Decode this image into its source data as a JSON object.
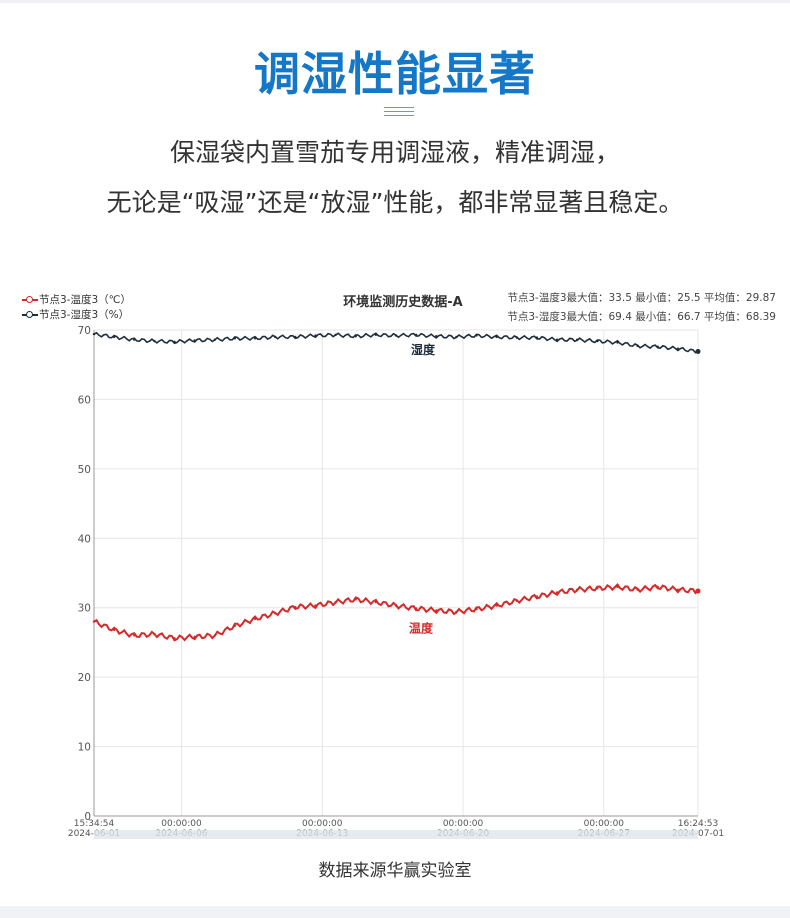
{
  "header": {
    "title": "调湿性能显著",
    "desc_line1": "保湿袋内置雪茄专用调湿液，精准调湿，",
    "desc_line2": "无论是“吸湿”还是“放湿”性能，都非常显著且稳定。"
  },
  "chart_data": {
    "type": "line",
    "title": "环境监测历史数据-A",
    "ylim": [
      0,
      70
    ],
    "yticks": [
      0,
      10,
      20,
      30,
      40,
      50,
      60,
      70
    ],
    "grid": true,
    "legend_position": "top-left",
    "x_ticks": [
      {
        "time": "15:34:54",
        "date": "2024-06-01"
      },
      {
        "time": "00:00:00",
        "date": "2024-06-06"
      },
      {
        "time": "00:00:00",
        "date": "2024-06-13"
      },
      {
        "time": "00:00:00",
        "date": "2024-06-20"
      },
      {
        "time": "00:00:00",
        "date": "2024-06-27"
      },
      {
        "time": "16:24:53",
        "date": "2024-07-01"
      }
    ],
    "x": [
      "06-01",
      "06-02",
      "06-03",
      "06-04",
      "06-05",
      "06-06",
      "06-07",
      "06-08",
      "06-09",
      "06-10",
      "06-11",
      "06-12",
      "06-13",
      "06-14",
      "06-15",
      "06-16",
      "06-17",
      "06-18",
      "06-19",
      "06-20",
      "06-21",
      "06-22",
      "06-23",
      "06-24",
      "06-25",
      "06-26",
      "06-27",
      "06-28",
      "06-29",
      "06-30",
      "07-01"
    ],
    "series": [
      {
        "name": "节点3-温度3（℃）",
        "color": "#d42a2a",
        "label": "温度",
        "values": [
          28.0,
          26.8,
          26.0,
          26.2,
          25.6,
          25.8,
          26.0,
          27.4,
          28.4,
          29.2,
          30.1,
          30.3,
          30.8,
          31.2,
          30.8,
          30.3,
          29.9,
          29.6,
          29.4,
          29.8,
          30.3,
          31.0,
          31.6,
          32.2,
          32.6,
          32.8,
          33.0,
          32.6,
          33.0,
          32.6,
          32.4
        ]
      },
      {
        "name": "节点3-湿度3（%）",
        "color": "#1f2e3d",
        "label": "湿度",
        "values": [
          69.4,
          69.0,
          68.6,
          68.4,
          68.3,
          68.5,
          68.6,
          68.8,
          68.8,
          69.0,
          69.0,
          69.2,
          69.3,
          69.1,
          69.3,
          69.2,
          69.3,
          69.1,
          69.0,
          69.2,
          69.0,
          68.9,
          68.9,
          68.6,
          68.6,
          68.4,
          68.2,
          67.7,
          67.6,
          67.3,
          66.9
        ]
      }
    ],
    "stats": [
      "节点3-温度3最大值：33.5 最小值：25.5 平均值：29.87",
      "节点3-湿度3最大值：69.4 最小值：66.7 平均值：68.39"
    ],
    "source": "数据来源华赢实验室"
  }
}
